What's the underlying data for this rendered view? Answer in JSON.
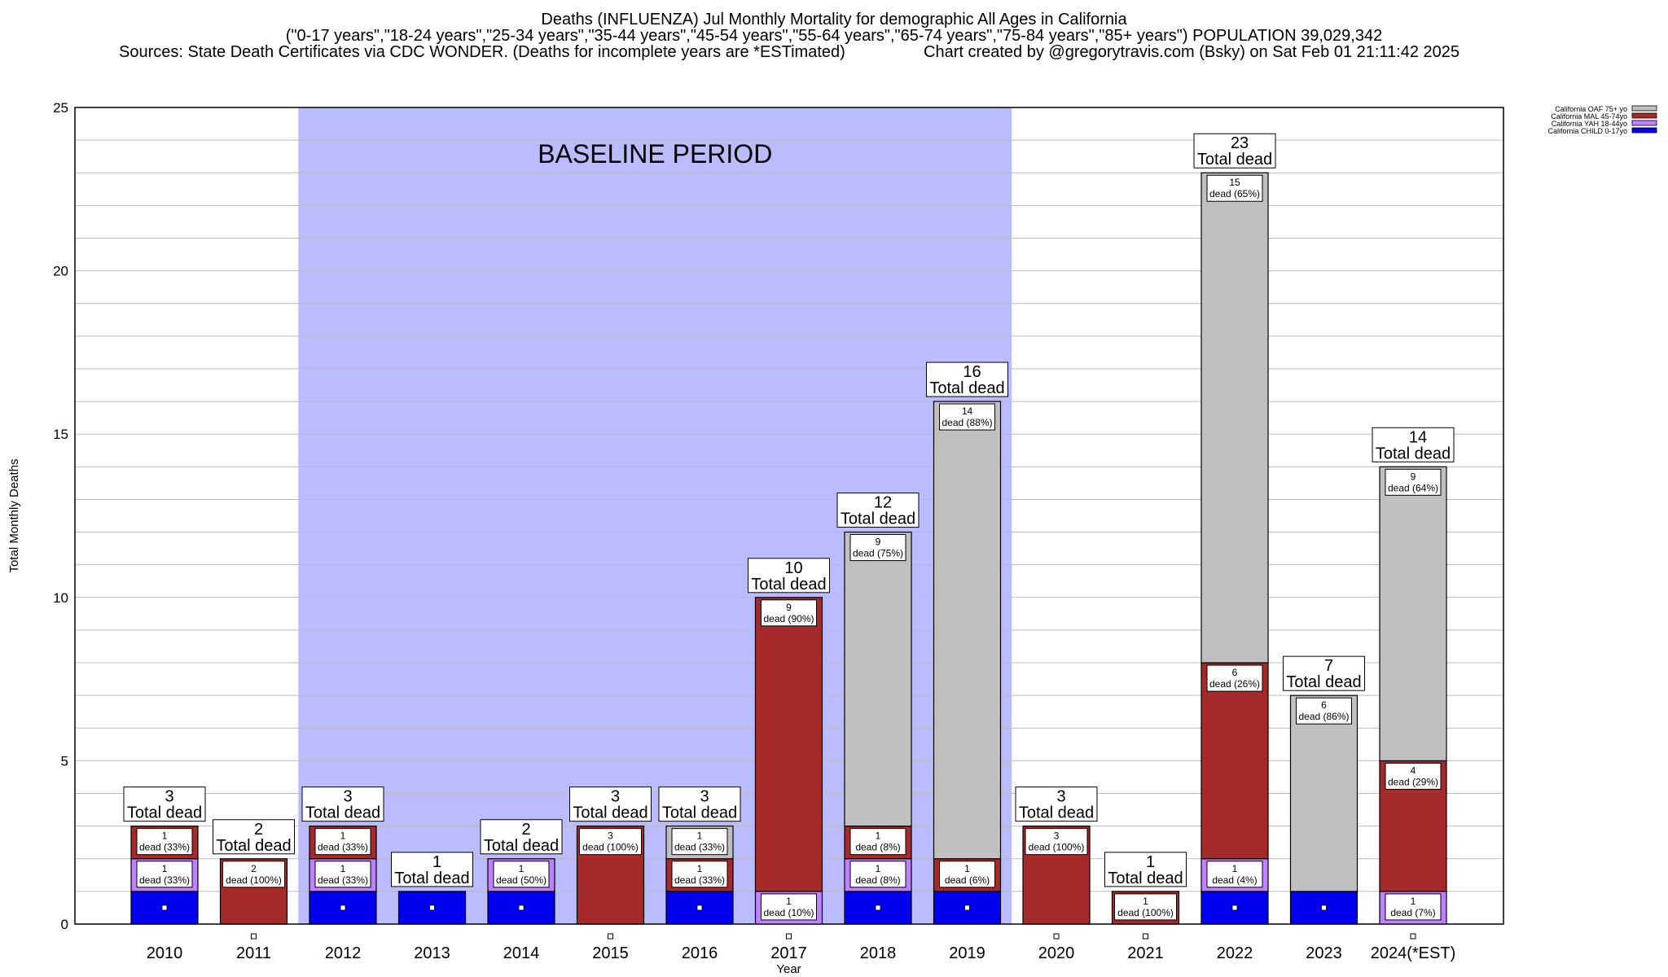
{
  "header": {
    "line1": "Deaths (INFLUENZA) Jul Monthly Mortality for demographic All Ages in California",
    "line2": "(\"0-17 years\",\"18-24 years\",\"25-34 years\",\"35-44 years\",\"45-54 years\",\"55-64 years\",\"65-74 years\",\"75-84 years\",\"85+ years\") POPULATION 39,029,342",
    "line3": "Sources: State Death Certificates via CDC WONDER. (Deaths for incomplete years are *ESTimated)",
    "line4": "Chart created by @gregorytravis.com (Bsky) on Sat Feb 01 21:11:42 2025"
  },
  "chart_data": {
    "type": "bar",
    "stacked": true,
    "xlabel": "Year",
    "ylabel": "Total Monthly Deaths",
    "ylim": [
      0,
      25
    ],
    "yticks": [
      0,
      5,
      10,
      15,
      20,
      25
    ],
    "grid": true,
    "legend_position": "top-right",
    "categories": [
      "2010",
      "2011",
      "2012",
      "2013",
      "2014",
      "2015",
      "2016",
      "2017",
      "2018",
      "2019",
      "2020",
      "2021",
      "2022",
      "2023",
      "2024(*EST)"
    ],
    "series": [
      {
        "name": "California CHILD 0-17yo",
        "color": "#0000ee",
        "values": [
          1,
          0,
          1,
          1,
          1,
          0,
          1,
          0,
          1,
          1,
          0,
          0,
          1,
          1,
          0
        ]
      },
      {
        "name": "California YAH 18-44yo",
        "color": "#c080ff",
        "values": [
          1,
          0,
          1,
          0,
          1,
          0,
          0,
          1,
          1,
          0,
          0,
          0,
          1,
          0,
          1
        ]
      },
      {
        "name": "California MAL 45-74yo",
        "color": "#a52a2a",
        "values": [
          1,
          2,
          1,
          0,
          0,
          3,
          1,
          9,
          1,
          1,
          3,
          1,
          6,
          0,
          4
        ]
      },
      {
        "name": "California OAF 75+ yo",
        "color": "#c0c0c0",
        "values": [
          0,
          0,
          0,
          0,
          0,
          0,
          1,
          0,
          9,
          14,
          0,
          0,
          15,
          6,
          9
        ]
      }
    ],
    "totals": [
      3,
      2,
      3,
      1,
      2,
      3,
      3,
      10,
      12,
      16,
      3,
      1,
      23,
      7,
      14
    ],
    "total_label": "Total dead",
    "segment_labels": [
      {
        "category": "2010",
        "value": 1,
        "text": "dead (33%)",
        "base": 2
      },
      {
        "category": "2010",
        "value": 1,
        "text": "dead (33%)",
        "base": 1
      },
      {
        "category": "2011",
        "value": 2,
        "text": "dead (100%)",
        "base": 0
      },
      {
        "category": "2012",
        "value": 1,
        "text": "dead (33%)",
        "base": 2
      },
      {
        "category": "2012",
        "value": 1,
        "text": "dead (33%)",
        "base": 1
      },
      {
        "category": "2014",
        "value": 1,
        "text": "dead (50%)",
        "base": 1
      },
      {
        "category": "2015",
        "value": 3,
        "text": "dead (100%)",
        "base": 0
      },
      {
        "category": "2016",
        "value": 1,
        "text": "dead (33%)",
        "base": 2
      },
      {
        "category": "2016",
        "value": 1,
        "text": "dead (33%)",
        "base": 1
      },
      {
        "category": "2017",
        "value": 9,
        "text": "dead (90%)",
        "base": 1
      },
      {
        "category": "2017",
        "value": 1,
        "text": "dead (10%)",
        "base": 0
      },
      {
        "category": "2018",
        "value": 9,
        "text": "dead (75%)",
        "base": 3
      },
      {
        "category": "2018",
        "value": 1,
        "text": "dead (8%)",
        "base": 2
      },
      {
        "category": "2018",
        "value": 1,
        "text": "dead (8%)",
        "base": 1
      },
      {
        "category": "2019",
        "value": 14,
        "text": "dead (88%)",
        "base": 2
      },
      {
        "category": "2019",
        "value": 1,
        "text": "dead (6%)",
        "base": 1
      },
      {
        "category": "2020",
        "value": 3,
        "text": "dead (100%)",
        "base": 0
      },
      {
        "category": "2021",
        "value": 1,
        "text": "dead (100%)",
        "base": 0
      },
      {
        "category": "2022",
        "value": 15,
        "text": "dead (65%)",
        "base": 8
      },
      {
        "category": "2022",
        "value": 6,
        "text": "dead (26%)",
        "base": 2
      },
      {
        "category": "2022",
        "value": 1,
        "text": "dead (4%)",
        "base": 1
      },
      {
        "category": "2023",
        "value": 6,
        "text": "dead (86%)",
        "base": 1
      },
      {
        "category": "2024(*EST)",
        "value": 9,
        "text": "dead (64%)",
        "base": 5
      },
      {
        "category": "2024(*EST)",
        "value": 4,
        "text": "dead (29%)",
        "base": 1
      },
      {
        "category": "2024(*EST)",
        "value": 1,
        "text": "dead (7%)",
        "base": 0
      }
    ],
    "annotations": [
      {
        "text": "BASELINE PERIOD",
        "x_start": "2012",
        "x_end": "2019",
        "color": "#bbbbff"
      }
    ]
  }
}
